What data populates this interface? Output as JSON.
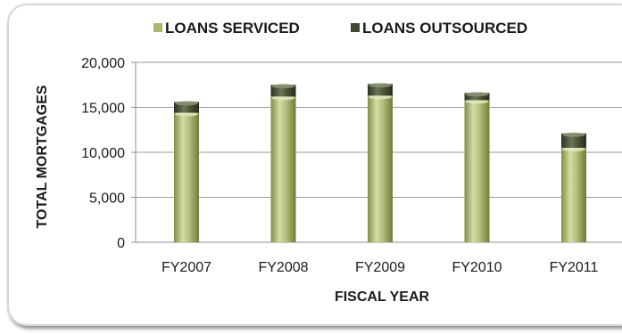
{
  "chart_data": {
    "type": "bar",
    "stacked": true,
    "categories": [
      "FY2007",
      "FY2008",
      "FY2009",
      "FY2010",
      "FY2011"
    ],
    "series": [
      {
        "name": "LOANS SERVICED",
        "values": [
          14400,
          16200,
          16300,
          15800,
          10500
        ],
        "color": "#a9b86a"
      },
      {
        "name": "LOANS OUTSOURCED",
        "values": [
          1200,
          1300,
          1300,
          800,
          1600
        ],
        "color": "#3f4a30"
      }
    ],
    "xlabel": "FISCAL YEAR",
    "ylabel": "TOTAL MORTGAGES",
    "yticks": [
      "0",
      "5,000",
      "10,000",
      "15,000",
      "20,000"
    ],
    "ylim": [
      0,
      20000
    ],
    "grid": true,
    "legend_position": "top"
  }
}
